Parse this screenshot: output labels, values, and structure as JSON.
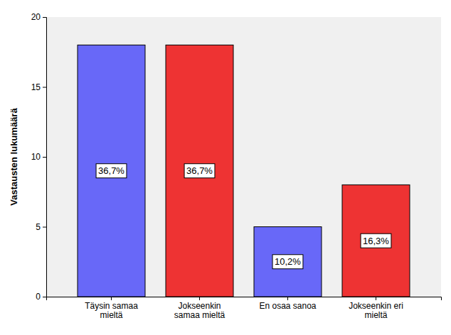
{
  "chart_data": {
    "type": "bar",
    "y_label": "Vastausten lukumäärä",
    "categories": [
      "Täysin samaa mieltä",
      "Jokseenkin samaa mieltä",
      "En osaa sanoa",
      "Jokseenkin eri mieltä"
    ],
    "values": [
      18,
      18,
      5,
      8
    ],
    "percentages": [
      36.7,
      36.7,
      10.2,
      16.3
    ],
    "percentage_labels": [
      "36,7%",
      "36,7%",
      "10,2%",
      "16,3%"
    ],
    "colors": [
      "#6868f8",
      "#ee3333",
      "#6868f8",
      "#ee3333"
    ],
    "ylim": [
      0,
      20
    ],
    "yticks": [
      0,
      5,
      10,
      15,
      20
    ],
    "grid": false
  }
}
